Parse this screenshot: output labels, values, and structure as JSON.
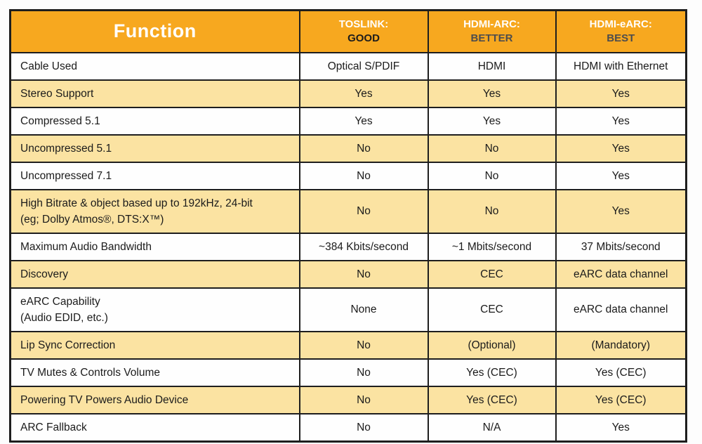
{
  "chart_data": {
    "type": "table",
    "title": "",
    "columns": [
      "Function",
      "TOSLINK: GOOD",
      "HDMI-ARC: BETTER",
      "HDMI-eARC: BEST"
    ],
    "rows": [
      [
        "Cable Used",
        "Optical S/PDIF",
        "HDMI",
        "HDMI with Ethernet"
      ],
      [
        "Stereo Support",
        "Yes",
        "Yes",
        "Yes"
      ],
      [
        "Compressed 5.1",
        "Yes",
        "Yes",
        "Yes"
      ],
      [
        "Uncompressed 5.1",
        "No",
        "No",
        "Yes"
      ],
      [
        "Uncompressed 7.1",
        "No",
        "No",
        "Yes"
      ],
      [
        "High Bitrate & object based up to 192kHz, 24-bit\n(eg; Dolby Atmos®, DTS:X™)",
        "No",
        "No",
        "Yes"
      ],
      [
        "Maximum Audio Bandwidth",
        "~384 Kbits/second",
        "~1 Mbits/second",
        "37 Mbits/second"
      ],
      [
        "Discovery",
        "No",
        "CEC",
        "eARC data channel"
      ],
      [
        "eARC Capability\n(Audio EDID, etc.)",
        "None",
        "CEC",
        "eARC data channel"
      ],
      [
        "Lip Sync Correction",
        "No",
        "(Optional)",
        "(Mandatory)"
      ],
      [
        "TV Mutes & Controls Volume",
        "No",
        "Yes (CEC)",
        "Yes (CEC)"
      ],
      [
        "Powering TV Powers Audio Device",
        "No",
        "Yes (CEC)",
        "Yes (CEC)"
      ],
      [
        "ARC Fallback",
        "No",
        "N/A",
        "Yes"
      ]
    ]
  },
  "header": {
    "function_label": "Function",
    "columns": [
      {
        "name": "TOSLINK:",
        "rating": "GOOD",
        "rating_color": "#1c1c1c"
      },
      {
        "name": "HDMI-ARC:",
        "rating": "BETTER",
        "rating_color": "#4d4d4d"
      },
      {
        "name": "HDMI-eARC:",
        "rating": "BEST",
        "rating_color": "#4d4d4d"
      }
    ]
  },
  "colors": {
    "header_bg": "#F7A81F",
    "header_name_text": "#FFFFFF",
    "row_bg": "#FEFEFE",
    "row_alt_bg": "#FBE3A2",
    "border": "#1E1E1E"
  }
}
